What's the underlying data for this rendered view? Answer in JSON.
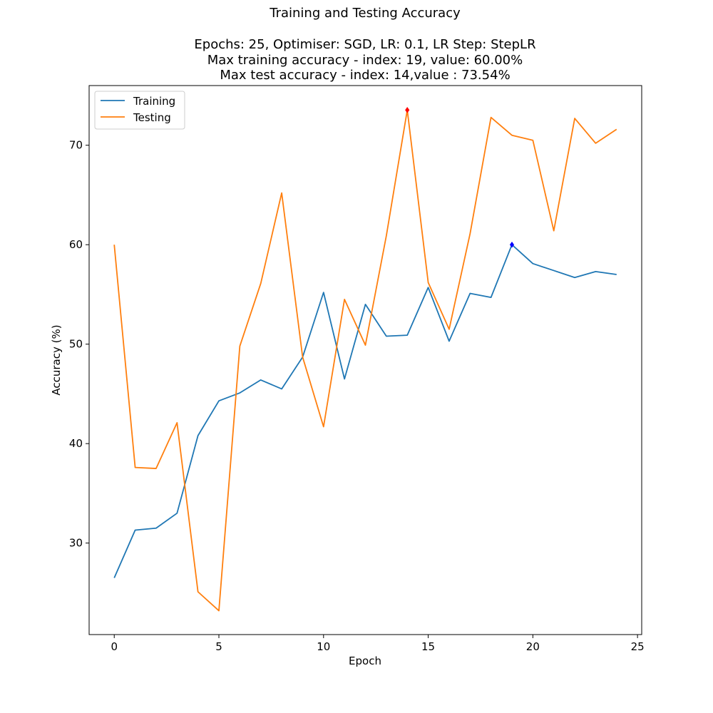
{
  "chart_data": {
    "type": "line",
    "title": "Training and Testing Accuracy",
    "subtitle_lines": [
      "Epochs: 25, Optimiser: SGD, LR: 0.1, LR Step: StepLR",
      "Max training accuracy - index: 19, value: 60.00%",
      "Max test accuracy - index: 14,value : 73.54%"
    ],
    "xlabel": "Epoch",
    "ylabel": "Accuracy (%)",
    "xlim": [
      -1.2,
      25.2
    ],
    "ylim": [
      20.8,
      76.0
    ],
    "xticks": [
      0,
      5,
      10,
      15,
      20,
      25
    ],
    "yticks": [
      30,
      40,
      50,
      60,
      70
    ],
    "grid": false,
    "legend_position": "top-left",
    "x": [
      0,
      1,
      2,
      3,
      4,
      5,
      6,
      7,
      8,
      9,
      10,
      11,
      12,
      13,
      14,
      15,
      16,
      17,
      18,
      19,
      20,
      21,
      22,
      23,
      24
    ],
    "series": [
      {
        "name": "Training",
        "color": "#1f77b4",
        "values": [
          26.5,
          31.3,
          31.5,
          33.0,
          40.8,
          44.3,
          45.1,
          46.4,
          45.5,
          48.7,
          55.2,
          46.5,
          54.0,
          50.8,
          50.9,
          55.7,
          50.3,
          55.1,
          54.7,
          60.0,
          58.1,
          57.4,
          56.7,
          57.3,
          57.0
        ],
        "max_marker": {
          "index": 19,
          "value": 60.0,
          "color": "#0000ff"
        }
      },
      {
        "name": "Testing",
        "color": "#ff7f0e",
        "values": [
          60.0,
          37.6,
          37.5,
          42.1,
          25.1,
          23.2,
          49.8,
          56.1,
          65.2,
          48.7,
          41.7,
          54.5,
          49.9,
          60.9,
          73.54,
          56.2,
          51.5,
          61.1,
          72.8,
          71.0,
          70.5,
          61.4,
          72.7,
          70.2,
          71.6
        ],
        "max_marker": {
          "index": 14,
          "value": 73.54,
          "color": "#ff0000"
        }
      }
    ]
  }
}
